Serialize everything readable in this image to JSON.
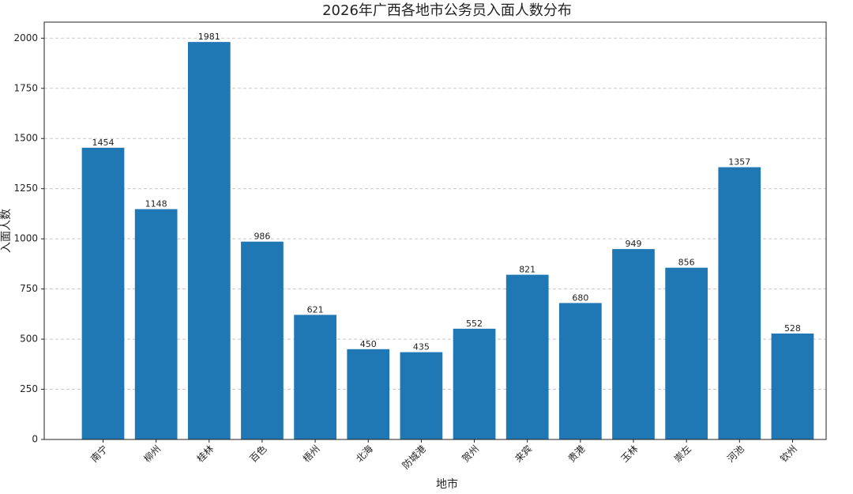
{
  "chart_data": {
    "type": "bar",
    "title": "2026年广西各地市公务员入面人数分布",
    "x_label": "地市",
    "y_label": "入面人数",
    "categories": [
      "南宁",
      "柳州",
      "桂林",
      "百色",
      "梧州",
      "北海",
      "防城港",
      "贺州",
      "来宾",
      "贵港",
      "玉林",
      "崇左",
      "河池",
      "钦州"
    ],
    "values": [
      1454,
      1148,
      1981,
      986,
      621,
      450,
      435,
      552,
      821,
      680,
      949,
      856,
      1357,
      528
    ],
    "color": "#1f77b4",
    "ylim": [
      0,
      2080
    ],
    "yticks": [
      0,
      250,
      500,
      750,
      1000,
      1250,
      1500,
      1750,
      2000
    ],
    "grid": true
  }
}
